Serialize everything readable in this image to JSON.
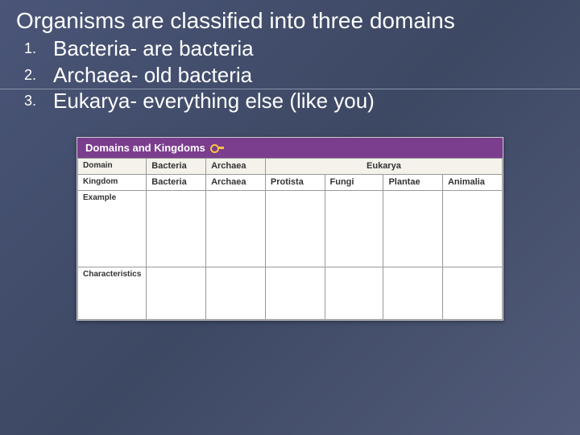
{
  "title": "Organisms are classified into three domains",
  "items": [
    "Bacteria- are bacteria",
    "Archaea- old bacteria",
    "Eukarya- everything else (like you)"
  ],
  "table": {
    "header": "Domains and Kingdoms",
    "row_labels": {
      "domain": "Domain",
      "kingdom": "Kingdom",
      "example": "Example",
      "characteristics": "Characteristics"
    },
    "domains": [
      "Bacteria",
      "Archaea",
      "Eukarya"
    ],
    "kingdoms": [
      "Bacteria",
      "Archaea",
      "Protista",
      "Fungi",
      "Plantae",
      "Animalia"
    ],
    "colors": {
      "header_bg": "#7b3d8e",
      "header_text": "#ffffff",
      "key_icon": "#f5c542",
      "border": "#999999",
      "label_bg": "#f8f6f2"
    }
  }
}
